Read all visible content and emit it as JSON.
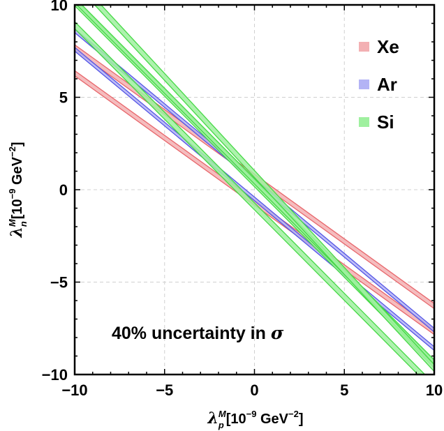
{
  "chart_data": {
    "type": "line",
    "xlim": [
      -10,
      10
    ],
    "ylim": [
      -10,
      10
    ],
    "xticks": [
      -10,
      -5,
      0,
      5,
      10
    ],
    "yticks": [
      -10,
      -5,
      0,
      5,
      10
    ],
    "xtick_labels": [
      "−10",
      "−5",
      "0",
      "5",
      "10"
    ],
    "ytick_labels": [
      "−10",
      "−5",
      "0",
      "5",
      "10"
    ],
    "grid": true,
    "xlabel": {
      "symbol": "λ",
      "sub": "p",
      "sup": "M",
      "units": "[10",
      "exp": "−9",
      "units2": " GeV",
      "exp2": "−2",
      "close": "]"
    },
    "ylabel": {
      "symbol": "λ",
      "sub": "n",
      "sup": "M",
      "units": "[10",
      "exp": "−9",
      "units2": " GeV",
      "exp2": "−2",
      "close": "]"
    },
    "annotation": {
      "text": "40% uncertainty in ",
      "symbol": "σ",
      "x": -8,
      "y": -8
    },
    "legend_position": "top-right",
    "series": [
      {
        "name": "Xe",
        "color": "#e8666b",
        "fill": "#f3b0b3",
        "bands": [
          {
            "slope": -0.7,
            "intercept": -0.7,
            "halfwidth": 0.14
          },
          {
            "slope": -0.7,
            "intercept": 0.7,
            "halfwidth": 0.14
          }
        ]
      },
      {
        "name": "Ar",
        "color": "#5555e6",
        "fill": "#b3b3f5",
        "bands": [
          {
            "slope": -0.81,
            "intercept": -0.5,
            "halfwidth": 0.1
          },
          {
            "slope": -0.81,
            "intercept": 0.5,
            "halfwidth": 0.1
          }
        ]
      },
      {
        "name": "Si",
        "color": "#45d945",
        "fill": "#9ff09f",
        "bands": [
          {
            "slope": -0.98,
            "intercept": -0.9,
            "halfwidth": 0.19
          },
          {
            "slope": -0.98,
            "intercept": 0.35,
            "halfwidth": 0.19
          },
          {
            "slope": -0.98,
            "intercept": 0.45,
            "halfwidth": 0.14
          },
          {
            "slope": -1.05,
            "intercept": 0.85,
            "halfwidth": 0.19
          }
        ]
      }
    ]
  }
}
